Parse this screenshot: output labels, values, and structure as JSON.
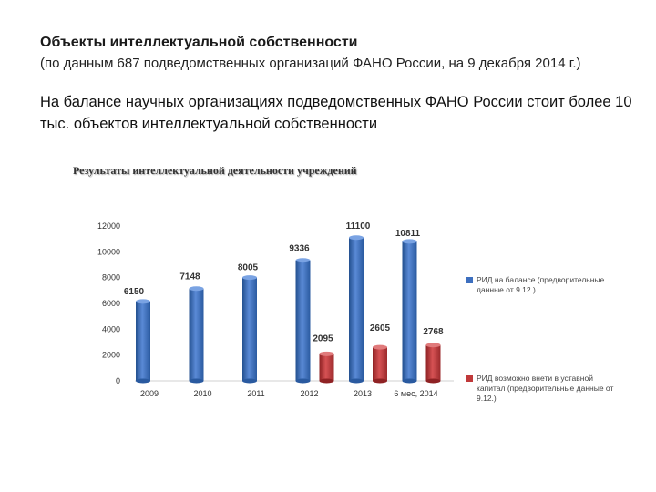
{
  "slide": {
    "title": "Объекты интеллектуальной собственности",
    "subtitle": "(по данным 687 подведомственных организаций ФАНО России, на 9 декабря 2014 г.)",
    "body": "На балансе научных организациях подведомственных ФАНО России стоит более 10 тыс. объектов интеллектуальной собственности"
  },
  "chart_data": {
    "type": "bar",
    "title": "Результаты интеллектуальной деятельности учреждений",
    "xlabel": "",
    "ylabel": "",
    "categories": [
      "2009",
      "2010",
      "2011",
      "2012",
      "2013",
      "6 мес, 2014"
    ],
    "ylim": [
      0,
      12000
    ],
    "yticks": [
      0,
      2000,
      4000,
      6000,
      8000,
      10000,
      12000
    ],
    "grid": false,
    "legend_position": "right",
    "series": [
      {
        "name": "РИД на балансе (предворительные данные от 9.12.)",
        "color": "#3d6fbf",
        "values": [
          6150,
          7148,
          8005,
          9336,
          11100,
          10811
        ]
      },
      {
        "name": "РИД возможно внети в уставной капитал (предворительные данные от 9.12.)",
        "color": "#c0393a",
        "values": [
          null,
          null,
          null,
          2095,
          2605,
          2768
        ]
      }
    ]
  }
}
